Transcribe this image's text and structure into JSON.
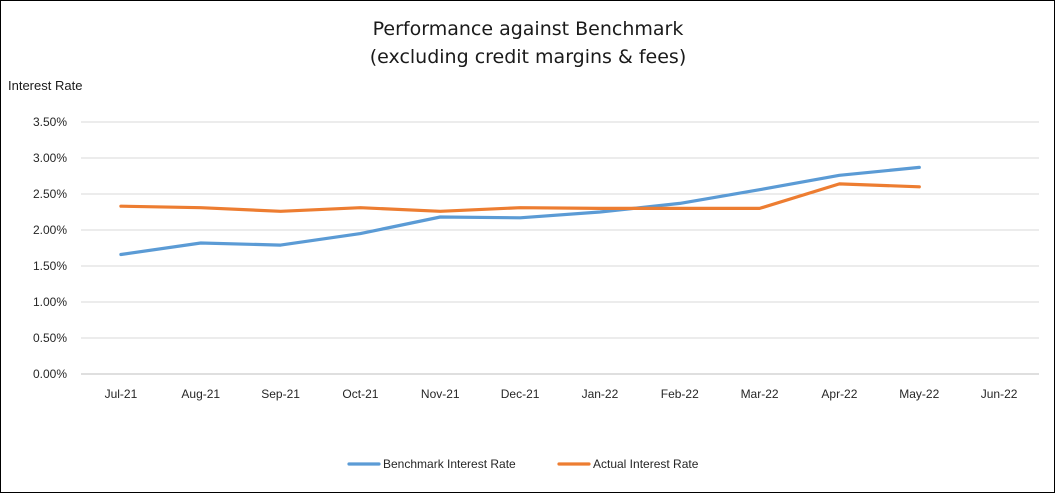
{
  "chart_data": {
    "type": "line",
    "title": "Performance against Benchmark",
    "subtitle": "(excluding credit margins & fees)",
    "ylabel": "Interest  Rate",
    "xlabel": "",
    "categories": [
      "Jul-21",
      "Aug-21",
      "Sep-21",
      "Oct-21",
      "Nov-21",
      "Dec-21",
      "Jan-22",
      "Feb-22",
      "Mar-22",
      "Apr-22",
      "May-22",
      "Jun-22"
    ],
    "ylim": [
      0,
      0.035
    ],
    "yticks": [
      0,
      0.005,
      0.01,
      0.015,
      0.02,
      0.025,
      0.03,
      0.035
    ],
    "ytick_labels": [
      "0.00%",
      "0.50%",
      "1.00%",
      "1.50%",
      "2.00%",
      "2.50%",
      "3.00%",
      "3.50%"
    ],
    "grid": "horizontal",
    "legend_position": "bottom",
    "series": [
      {
        "name": "Benchmark Interest Rate",
        "color": "#5B9BD5",
        "values": [
          0.0166,
          0.0182,
          0.0179,
          0.0195,
          0.0218,
          0.0217,
          0.0225,
          0.0237,
          0.0256,
          0.0276,
          0.0287,
          null
        ]
      },
      {
        "name": "Actual Interest Rate",
        "color": "#ED7D31",
        "values": [
          0.0233,
          0.0231,
          0.0226,
          0.0231,
          0.0226,
          0.0231,
          0.023,
          0.023,
          0.023,
          0.0264,
          0.026,
          null
        ]
      }
    ]
  }
}
